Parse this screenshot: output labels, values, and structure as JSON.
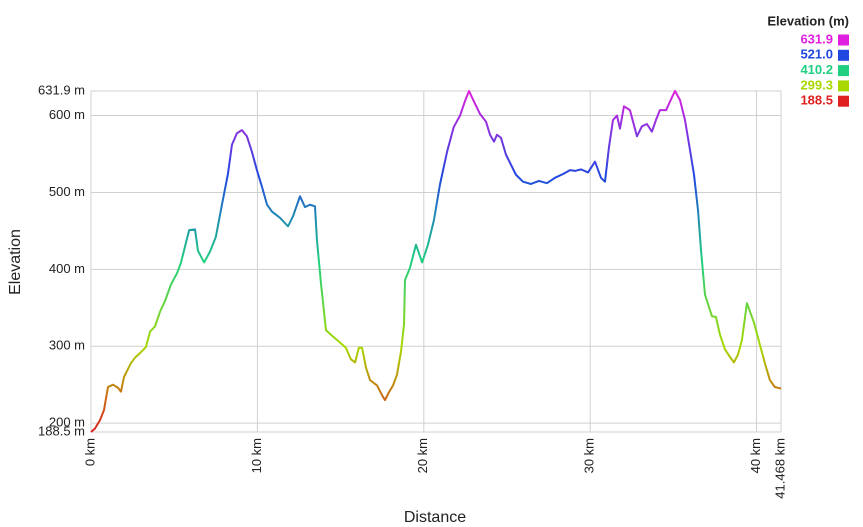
{
  "chart_data": {
    "type": "line",
    "x_label": "Distance",
    "y_label": "Elevation",
    "xlim": [
      0,
      41.468
    ],
    "ylim": [
      188.5,
      631.9
    ],
    "xticks": [
      {
        "value": 0,
        "label": "0 km"
      },
      {
        "value": 10,
        "label": "10 km"
      },
      {
        "value": 20,
        "label": "20 km"
      },
      {
        "value": 30,
        "label": "30 km"
      },
      {
        "value": 40,
        "label": "40 km"
      },
      {
        "value": 41.468,
        "label": "41.468 km"
      }
    ],
    "yticks": [
      {
        "value": 188.5,
        "label": "188.5 m"
      },
      {
        "value": 200,
        "label": "200 m"
      },
      {
        "value": 300,
        "label": "300 m"
      },
      {
        "value": 400,
        "label": "400 m"
      },
      {
        "value": 500,
        "label": "500 m"
      },
      {
        "value": 600,
        "label": "600 m"
      },
      {
        "value": 631.9,
        "label": "631.9 m"
      }
    ],
    "grid": true,
    "legend": {
      "title": "Elevation (m)",
      "values": [
        631.9,
        521,
        410.2,
        299.3,
        188.5
      ],
      "value_labels": [
        "631.9",
        "521.0",
        "410.2",
        "299.3",
        "188.5"
      ],
      "colors": [
        "#e020e0",
        "#2048e0",
        "#20d080",
        "#a8d800",
        "#e02020"
      ]
    },
    "x": [
      0,
      0.24,
      0.54,
      0.78,
      1.02,
      1.32,
      1.62,
      1.8,
      1.98,
      2.4,
      2.64,
      2.94,
      3.3,
      3.55,
      3.85,
      4.15,
      4.45,
      4.8,
      5.17,
      5.4,
      5.7,
      5.9,
      6.25,
      6.43,
      6.8,
      7.15,
      7.5,
      7.87,
      8.23,
      8.47,
      8.77,
      9.07,
      9.37,
      9.67,
      9.97,
      10.28,
      10.58,
      10.88,
      11.36,
      11.84,
      12.14,
      12.56,
      12.86,
      13.16,
      13.46,
      13.58,
      13.82,
      14.12,
      14.42,
      14.9,
      15.32,
      15.62,
      15.87,
      16.1,
      16.29,
      16.53,
      16.77,
      17.19,
      17.5,
      17.67,
      17.9,
      18.15,
      18.39,
      18.63,
      18.81,
      18.87,
      19.17,
      19.53,
      19.9,
      20.25,
      20.61,
      20.97,
      21.4,
      21.8,
      22.18,
      22.48,
      22.72,
      23.02,
      23.38,
      23.74,
      23.98,
      24.22,
      24.4,
      24.64,
      24.94,
      25.24,
      25.54,
      25.96,
      26.44,
      26.92,
      27.4,
      27.88,
      28.37,
      28.79,
      29.09,
      29.45,
      29.87,
      30.29,
      30.65,
      30.89,
      31.13,
      31.37,
      31.61,
      31.79,
      32.03,
      32.39,
      32.81,
      33.11,
      33.41,
      33.71,
      33.95,
      34.19,
      34.56,
      34.92,
      35.1,
      35.4,
      35.7,
      36.0,
      36.24,
      36.48,
      36.66,
      36.9,
      37.32,
      37.56,
      37.8,
      38.1,
      38.4,
      38.64,
      38.88,
      39.12,
      39.42,
      39.84,
      40.2,
      40.5,
      40.8,
      41.1,
      41.468
    ],
    "values": [
      188.5,
      193,
      204,
      217,
      247,
      250,
      246,
      241,
      260,
      278,
      285,
      291,
      299,
      319,
      326,
      345,
      359,
      380,
      395,
      408,
      434,
      451,
      452,
      424,
      409,
      423,
      442,
      484,
      524,
      562,
      577,
      581,
      573,
      553,
      529,
      507,
      484,
      475,
      467,
      456,
      469,
      495,
      481,
      484,
      482,
      438,
      382,
      321,
      315,
      306,
      298,
      283,
      279,
      298,
      298,
      272,
      256,
      249,
      236,
      230,
      240,
      249,
      263,
      293,
      328,
      386,
      402,
      432,
      409,
      432,
      464,
      510,
      553,
      585,
      600,
      619,
      631.9,
      618,
      602,
      592,
      575,
      566,
      575,
      571,
      549,
      536,
      523,
      514,
      511,
      515,
      512,
      519,
      524,
      529,
      528,
      530,
      526,
      540,
      519,
      514,
      559,
      594,
      600,
      583,
      612,
      607,
      573,
      586,
      589,
      579,
      594,
      607,
      607,
      624,
      631.9,
      620,
      594,
      555,
      523,
      477,
      425,
      367,
      339,
      338,
      315,
      296,
      286,
      279,
      289,
      308,
      356,
      331,
      302,
      278,
      256,
      247,
      245
    ]
  }
}
